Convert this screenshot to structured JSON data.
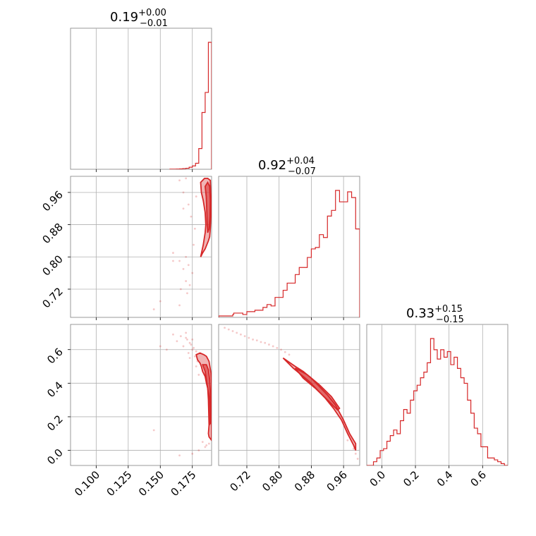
{
  "figure": {
    "color": "#d62728"
  },
  "chart_data": {
    "type": "corner",
    "parameters": [
      {
        "range": [
          0.08,
          0.19
        ],
        "ticks": [
          0.1,
          0.125,
          0.15,
          0.175
        ],
        "tick_labels": [
          "0.100",
          "0.125",
          "0.150",
          "0.175"
        ],
        "title": {
          "median": "0.19",
          "plus": "+0.00",
          "minus": "−0.01"
        },
        "hist": {
          "bin_edges": [
            0.1575,
            0.16,
            0.1625,
            0.165,
            0.1675,
            0.17,
            0.1725,
            0.175,
            0.1775,
            0.18,
            0.1825,
            0.185,
            0.1875,
            0.19
          ],
          "counts": [
            0.2,
            0.3,
            0.5,
            1,
            2,
            3,
            6,
            10,
            18,
            62,
            170,
            230,
            380
          ]
        }
      },
      {
        "range": [
          0.65,
          1.0
        ],
        "ticks": [
          0.72,
          0.8,
          0.88,
          0.96
        ],
        "tick_labels": [
          "0.72",
          "0.80",
          "0.88",
          "0.96"
        ],
        "title": {
          "median": "0.92",
          "plus": "+0.04",
          "minus": "−0.07"
        },
        "hist": {
          "bin_edges": [
            0.65,
            0.6675,
            0.685,
            0.6875,
            0.71,
            0.72,
            0.73,
            0.74,
            0.75,
            0.76,
            0.77,
            0.78,
            0.79,
            0.8,
            0.81,
            0.82,
            0.83,
            0.84,
            0.85,
            0.86,
            0.87,
            0.88,
            0.89,
            0.9,
            0.91,
            0.92,
            0.93,
            0.94,
            0.95,
            0.96,
            0.97,
            0.98,
            0.99,
            1.0
          ],
          "counts": [
            1,
            1,
            2,
            3,
            2,
            4,
            4,
            5,
            5,
            7,
            9,
            8,
            14,
            14,
            19,
            24,
            24,
            30,
            35,
            35,
            42,
            48,
            49,
            58,
            56,
            71,
            75,
            89,
            81,
            81,
            88,
            84,
            62
          ]
        }
      },
      {
        "range": [
          -0.09,
          0.75
        ],
        "ticks": [
          0.0,
          0.2,
          0.4,
          0.6
        ],
        "tick_labels": [
          "0.0",
          "0.2",
          "0.4",
          "0.6"
        ],
        "title": {
          "median": "0.33",
          "plus": "+0.15",
          "minus": "−0.15"
        },
        "hist": {
          "bin_edges": [
            -0.09,
            -0.05,
            -0.03,
            -0.01,
            0.01,
            0.03,
            0.05,
            0.07,
            0.09,
            0.11,
            0.13,
            0.15,
            0.17,
            0.19,
            0.21,
            0.23,
            0.25,
            0.27,
            0.29,
            0.31,
            0.33,
            0.35,
            0.37,
            0.39,
            0.41,
            0.43,
            0.45,
            0.47,
            0.49,
            0.51,
            0.53,
            0.55,
            0.57,
            0.59,
            0.61,
            0.63,
            0.65,
            0.67,
            0.69,
            0.71,
            0.73,
            0.75
          ],
          "counts": [
            0,
            2,
            4,
            8,
            9,
            13,
            16,
            19,
            17,
            24,
            30,
            28,
            35,
            40,
            43,
            47,
            50,
            55,
            68,
            62,
            57,
            62,
            58,
            61,
            54,
            58,
            52,
            47,
            44,
            35,
            28,
            20,
            17,
            10,
            10,
            4,
            4,
            3,
            2,
            1,
            0
          ]
        }
      }
    ],
    "pairs": [
      {
        "x_param": 0,
        "y_param": 1,
        "contour_outer": [
          [
            0.1815,
            0.985
          ],
          [
            0.1845,
            0.995
          ],
          [
            0.187,
            0.995
          ],
          [
            0.189,
            0.99
          ],
          [
            0.1895,
            0.95
          ],
          [
            0.1895,
            0.9
          ],
          [
            0.189,
            0.87
          ],
          [
            0.1885,
            0.85
          ],
          [
            0.1875,
            0.84
          ],
          [
            0.185,
            0.82
          ],
          [
            0.183,
            0.81
          ],
          [
            0.1815,
            0.8
          ],
          [
            0.1835,
            0.83
          ],
          [
            0.185,
            0.86
          ],
          [
            0.1855,
            0.88
          ],
          [
            0.185,
            0.91
          ],
          [
            0.1835,
            0.94
          ],
          [
            0.182,
            0.96
          ],
          [
            0.1815,
            0.985
          ]
        ],
        "contour_inner": [
          [
            0.185,
            0.975
          ],
          [
            0.187,
            0.985
          ],
          [
            0.1885,
            0.975
          ],
          [
            0.189,
            0.94
          ],
          [
            0.1888,
            0.9
          ],
          [
            0.188,
            0.87
          ],
          [
            0.187,
            0.86
          ],
          [
            0.1865,
            0.89
          ],
          [
            0.1862,
            0.92
          ],
          [
            0.1858,
            0.95
          ],
          [
            0.185,
            0.975
          ]
        ],
        "scatter": [
          [
            0.17,
            0.995
          ],
          [
            0.165,
            0.99
          ],
          [
            0.168,
            0.96
          ],
          [
            0.172,
            0.93
          ],
          [
            0.168,
            0.92
          ],
          [
            0.174,
            0.9
          ],
          [
            0.16,
            0.81
          ],
          [
            0.165,
            0.79
          ],
          [
            0.17,
            0.8
          ],
          [
            0.176,
            0.83
          ],
          [
            0.16,
            0.79
          ],
          [
            0.172,
            0.78
          ],
          [
            0.168,
            0.77
          ],
          [
            0.175,
            0.76
          ],
          [
            0.17,
            0.74
          ],
          [
            0.166,
            0.72
          ],
          [
            0.173,
            0.73
          ],
          [
            0.15,
            0.69
          ],
          [
            0.145,
            0.67
          ],
          [
            0.165,
            0.68
          ],
          [
            0.171,
            0.71
          ],
          [
            0.177,
            0.87
          ],
          [
            0.178,
            0.95
          ]
        ]
      },
      {
        "x_param": 0,
        "y_param": 2,
        "contour_outer": [
          [
            0.178,
            0.57
          ],
          [
            0.179,
            0.54
          ],
          [
            0.181,
            0.52
          ],
          [
            0.182,
            0.5
          ],
          [
            0.183,
            0.47
          ],
          [
            0.185,
            0.44
          ],
          [
            0.186,
            0.4
          ],
          [
            0.187,
            0.37
          ],
          [
            0.188,
            0.32
          ],
          [
            0.188,
            0.28
          ],
          [
            0.188,
            0.22
          ],
          [
            0.188,
            0.15
          ],
          [
            0.1875,
            0.1
          ],
          [
            0.188,
            0.08
          ],
          [
            0.19,
            0.06
          ],
          [
            0.19,
            0.2
          ],
          [
            0.19,
            0.4
          ],
          [
            0.1895,
            0.46
          ],
          [
            0.188,
            0.53
          ],
          [
            0.186,
            0.56
          ],
          [
            0.184,
            0.57
          ],
          [
            0.181,
            0.58
          ],
          [
            0.178,
            0.57
          ]
        ],
        "contour_inner": [
          [
            0.183,
            0.51
          ],
          [
            0.185,
            0.47
          ],
          [
            0.186,
            0.42
          ],
          [
            0.187,
            0.37
          ],
          [
            0.1875,
            0.3
          ],
          [
            0.1878,
            0.22
          ],
          [
            0.188,
            0.15
          ],
          [
            0.189,
            0.16
          ],
          [
            0.1892,
            0.25
          ],
          [
            0.189,
            0.35
          ],
          [
            0.1885,
            0.42
          ],
          [
            0.1875,
            0.48
          ],
          [
            0.186,
            0.51
          ],
          [
            0.183,
            0.51
          ]
        ],
        "scatter": [
          [
            0.17,
            0.67
          ],
          [
            0.173,
            0.64
          ],
          [
            0.168,
            0.62
          ],
          [
            0.175,
            0.6
          ],
          [
            0.172,
            0.58
          ],
          [
            0.176,
            0.61
          ],
          [
            0.174,
            0.63
          ],
          [
            0.178,
            0.59
          ],
          [
            0.177,
            0.56
          ],
          [
            0.17,
            0.7
          ],
          [
            0.166,
            0.68
          ],
          [
            0.163,
            0.65
          ],
          [
            0.16,
            0.69
          ],
          [
            0.171,
            0.66
          ],
          [
            0.175,
            0.66
          ],
          [
            0.173,
            0.55
          ],
          [
            0.179,
            0.53
          ],
          [
            0.15,
            0.62
          ],
          [
            0.155,
            0.6
          ],
          [
            0.178,
            0.5
          ],
          [
            0.18,
            0.45
          ],
          [
            0.183,
            0.05
          ],
          [
            0.186,
            0.03
          ],
          [
            0.18,
            0.0
          ],
          [
            0.175,
            -0.02
          ],
          [
            0.165,
            -0.03
          ],
          [
            0.145,
            0.12
          ],
          [
            0.185,
            0.02
          ],
          [
            0.188,
            0.04
          ]
        ]
      },
      {
        "x_param": 1,
        "y_param": 2,
        "contour_outer": [
          [
            0.81,
            0.55
          ],
          [
            0.84,
            0.5
          ],
          [
            0.86,
            0.47
          ],
          [
            0.88,
            0.43
          ],
          [
            0.9,
            0.38
          ],
          [
            0.92,
            0.33
          ],
          [
            0.94,
            0.27
          ],
          [
            0.96,
            0.18
          ],
          [
            0.975,
            0.1
          ],
          [
            0.99,
            0.04
          ],
          [
            0.99,
            0.0
          ],
          [
            0.985,
            0.03
          ],
          [
            0.97,
            0.1
          ],
          [
            0.955,
            0.18
          ],
          [
            0.935,
            0.25
          ],
          [
            0.915,
            0.31
          ],
          [
            0.895,
            0.36
          ],
          [
            0.875,
            0.41
          ],
          [
            0.855,
            0.45
          ],
          [
            0.835,
            0.49
          ],
          [
            0.81,
            0.55
          ]
        ],
        "contour_inner": [
          [
            0.84,
            0.49
          ],
          [
            0.87,
            0.45
          ],
          [
            0.9,
            0.39
          ],
          [
            0.93,
            0.32
          ],
          [
            0.95,
            0.25
          ],
          [
            0.945,
            0.24
          ],
          [
            0.92,
            0.3
          ],
          [
            0.89,
            0.37
          ],
          [
            0.86,
            0.43
          ],
          [
            0.84,
            0.49
          ]
        ],
        "scatter": [
          [
            0.665,
            0.73
          ],
          [
            0.675,
            0.72
          ],
          [
            0.685,
            0.71
          ],
          [
            0.695,
            0.7
          ],
          [
            0.705,
            0.69
          ],
          [
            0.715,
            0.68
          ],
          [
            0.725,
            0.67
          ],
          [
            0.735,
            0.66
          ],
          [
            0.745,
            0.655
          ],
          [
            0.755,
            0.645
          ],
          [
            0.765,
            0.64
          ],
          [
            0.775,
            0.63
          ],
          [
            0.785,
            0.62
          ],
          [
            0.795,
            0.61
          ],
          [
            0.805,
            0.6
          ],
          [
            0.815,
            0.585
          ],
          [
            0.825,
            0.57
          ],
          [
            0.99,
            -0.02
          ],
          [
            0.995,
            -0.05
          ],
          [
            0.985,
            0.01
          ],
          [
            0.97,
            0.06
          ]
        ]
      }
    ]
  }
}
